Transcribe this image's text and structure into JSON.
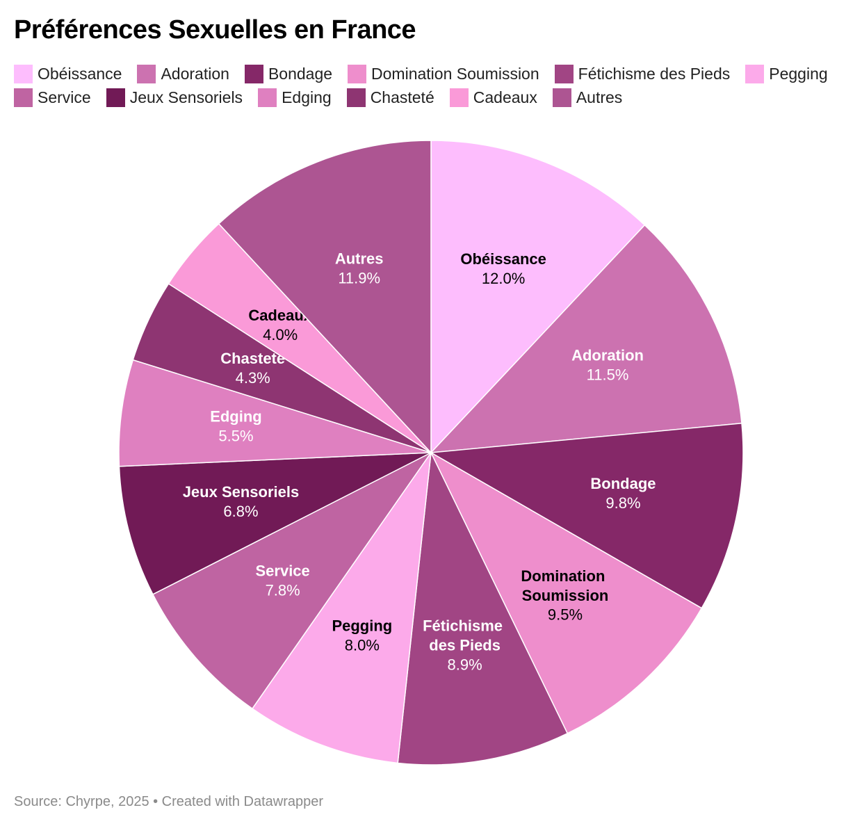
{
  "chart_data": {
    "type": "pie",
    "title": "Préférences Sexuelles en France",
    "categories": [
      "Obéissance",
      "Adoration",
      "Bondage",
      "Domination Soumission",
      "Fétichisme des Pieds",
      "Pegging",
      "Service",
      "Jeux Sensoriels",
      "Edging",
      "Chasteté",
      "Cadeaux",
      "Autres"
    ],
    "values": [
      12.0,
      11.5,
      9.8,
      9.5,
      8.9,
      8.0,
      7.8,
      6.8,
      5.5,
      4.3,
      4.0,
      11.9
    ],
    "value_labels": [
      "12.0%",
      "11.5%",
      "9.8%",
      "9.5%",
      "8.9%",
      "8.0%",
      "7.8%",
      "6.8%",
      "5.5%",
      "4.3%",
      "4.0%",
      "11.9%"
    ],
    "colors": [
      "#fdbdfd",
      "#cc72b0",
      "#852868",
      "#ee8ecc",
      "#a14584",
      "#fcaaea",
      "#bf64a2",
      "#711a56",
      "#df80c0",
      "#8e3572",
      "#fa9ad8",
      "#ad5592"
    ],
    "source": "Source: Chyrpe, 2025 • Created with Datawrapper"
  }
}
